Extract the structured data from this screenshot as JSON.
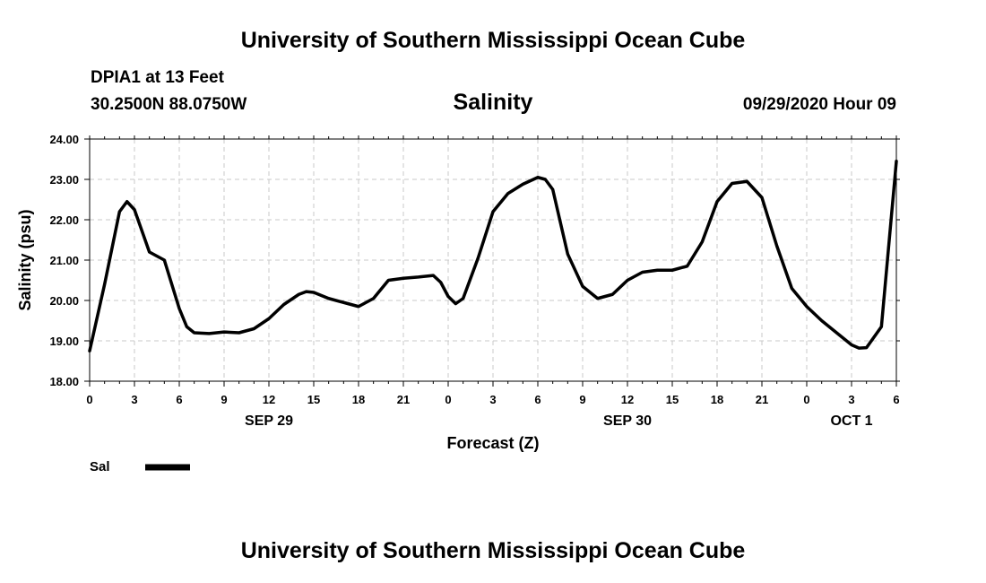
{
  "header": {
    "title": "University of Southern Mississippi Ocean Cube",
    "station": "DPIA1 at 13 Feet",
    "coordinates": "30.2500N 88.0750W",
    "datetime": "09/29/2020 Hour 09",
    "footer_title": "University of Southern Mississippi Ocean Cube"
  },
  "chart_data": {
    "type": "line",
    "title": "Salinity",
    "xlabel": "Forecast (Z)",
    "ylabel": "Salinity (psu)",
    "ylim": [
      18.0,
      24.0
    ],
    "yticks": [
      "18.00",
      "19.00",
      "20.00",
      "21.00",
      "22.00",
      "23.00",
      "24.00"
    ],
    "xlim": [
      0,
      54
    ],
    "xticks": [
      "0",
      "3",
      "6",
      "9",
      "12",
      "15",
      "18",
      "21",
      "0",
      "3",
      "6",
      "9",
      "12",
      "15",
      "18",
      "21",
      "0",
      "3",
      "6"
    ],
    "date_labels": [
      {
        "label": "SEP 29",
        "hour": 12
      },
      {
        "label": "SEP 30",
        "hour": 36
      },
      {
        "label": "OCT 1",
        "hour": 51
      }
    ],
    "grid": true,
    "legend": "bottom-left",
    "series": [
      {
        "name": "Sal",
        "color": "#000000",
        "x": [
          0,
          1,
          2,
          2.5,
          3,
          4,
          5,
          6,
          6.5,
          7,
          8,
          9,
          10,
          11,
          12,
          13,
          14,
          14.5,
          15,
          16,
          17,
          18,
          19,
          20,
          21,
          22,
          23,
          23.5,
          24,
          24.5,
          25,
          26,
          27,
          28,
          29,
          30,
          30.5,
          31,
          32,
          33,
          34,
          35,
          36,
          37,
          38,
          39,
          40,
          41,
          42,
          43,
          44,
          45,
          46,
          47,
          48,
          49,
          50,
          50.5,
          51,
          51.5,
          52,
          53,
          54
        ],
        "y": [
          18.75,
          20.4,
          22.2,
          22.45,
          22.25,
          21.2,
          21.0,
          19.8,
          19.35,
          19.2,
          19.18,
          19.22,
          19.2,
          19.3,
          19.55,
          19.9,
          20.15,
          20.22,
          20.2,
          20.05,
          19.95,
          19.85,
          20.05,
          20.5,
          20.55,
          20.58,
          20.62,
          20.45,
          20.1,
          19.92,
          20.05,
          21.05,
          22.2,
          22.65,
          22.88,
          23.05,
          23.0,
          22.75,
          21.15,
          20.35,
          20.05,
          20.15,
          20.5,
          20.7,
          20.75,
          20.75,
          20.85,
          21.45,
          22.45,
          22.9,
          22.95,
          22.55,
          21.35,
          20.3,
          19.85,
          19.5,
          19.2,
          19.05,
          18.9,
          18.82,
          18.83,
          19.35,
          23.45
        ]
      }
    ]
  }
}
